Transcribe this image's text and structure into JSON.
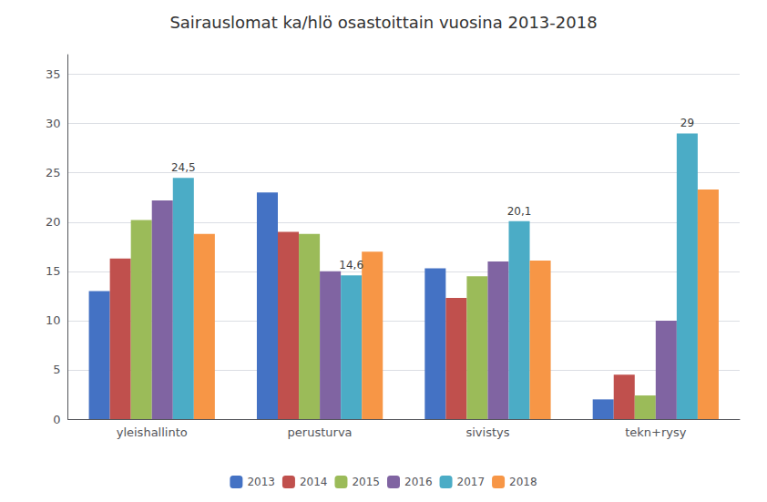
{
  "chart_data": {
    "type": "bar",
    "title": "Sairauslomat ka/hlö osastoittain vuosina 2013-2018",
    "categories": [
      "yleishallinto",
      "perusturva",
      "sivistys",
      "tekn+rysy"
    ],
    "series": [
      {
        "name": "2013",
        "color": "#4472C4",
        "values": [
          13,
          23,
          15.3,
          2
        ]
      },
      {
        "name": "2014",
        "color": "#C0504D",
        "values": [
          16.3,
          19,
          12.3,
          4.5
        ]
      },
      {
        "name": "2015",
        "color": "#9BBB59",
        "values": [
          20.2,
          18.8,
          14.5,
          2.4
        ]
      },
      {
        "name": "2016",
        "color": "#8064A2",
        "values": [
          22.2,
          15,
          16,
          10
        ]
      },
      {
        "name": "2017",
        "color": "#4BACC6",
        "values": [
          24.5,
          14.6,
          20.1,
          29
        ],
        "data_labels": true,
        "value_labels": [
          "24,5",
          "14,6",
          "20,1",
          "29"
        ]
      },
      {
        "name": "2018",
        "color": "#F79646",
        "values": [
          18.8,
          17,
          16.1,
          23.3
        ]
      }
    ],
    "ylim": [
      0,
      37
    ],
    "yticks": [
      0,
      5,
      10,
      15,
      20,
      25,
      30,
      35
    ],
    "grid": true,
    "legend": "bottom"
  }
}
